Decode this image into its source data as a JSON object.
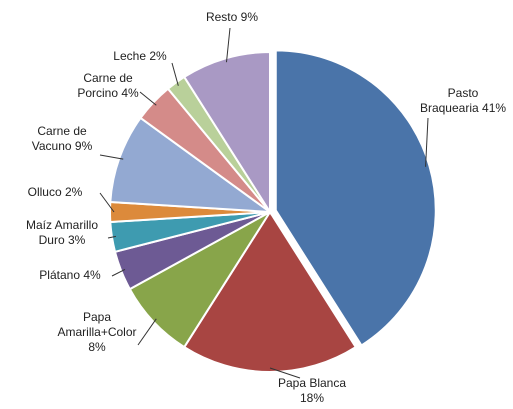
{
  "chart_data": {
    "type": "pie",
    "categories": [
      "Pasto Braquearia",
      "Papa Blanca",
      "Papa Amarilla+Color",
      "Plátano",
      "Maíz Amarillo Duro",
      "Olluco",
      "Carne de Vacuno",
      "Carne de Porcino",
      "Leche",
      "Resto"
    ],
    "values": [
      41,
      18,
      8,
      4,
      3,
      2,
      9,
      4,
      2,
      9
    ],
    "value_labels": [
      "41%",
      "18%",
      "8%",
      "4%",
      "3%",
      "2%",
      "9%",
      "4%",
      "2%",
      "9%"
    ],
    "colors": [
      "#4a74a9",
      "#a84542",
      "#88a54a",
      "#6d5a94",
      "#3e9bb0",
      "#dc8a3b",
      "#93a9d2",
      "#d48b89",
      "#b9d09a",
      "#a999c4"
    ]
  }
}
